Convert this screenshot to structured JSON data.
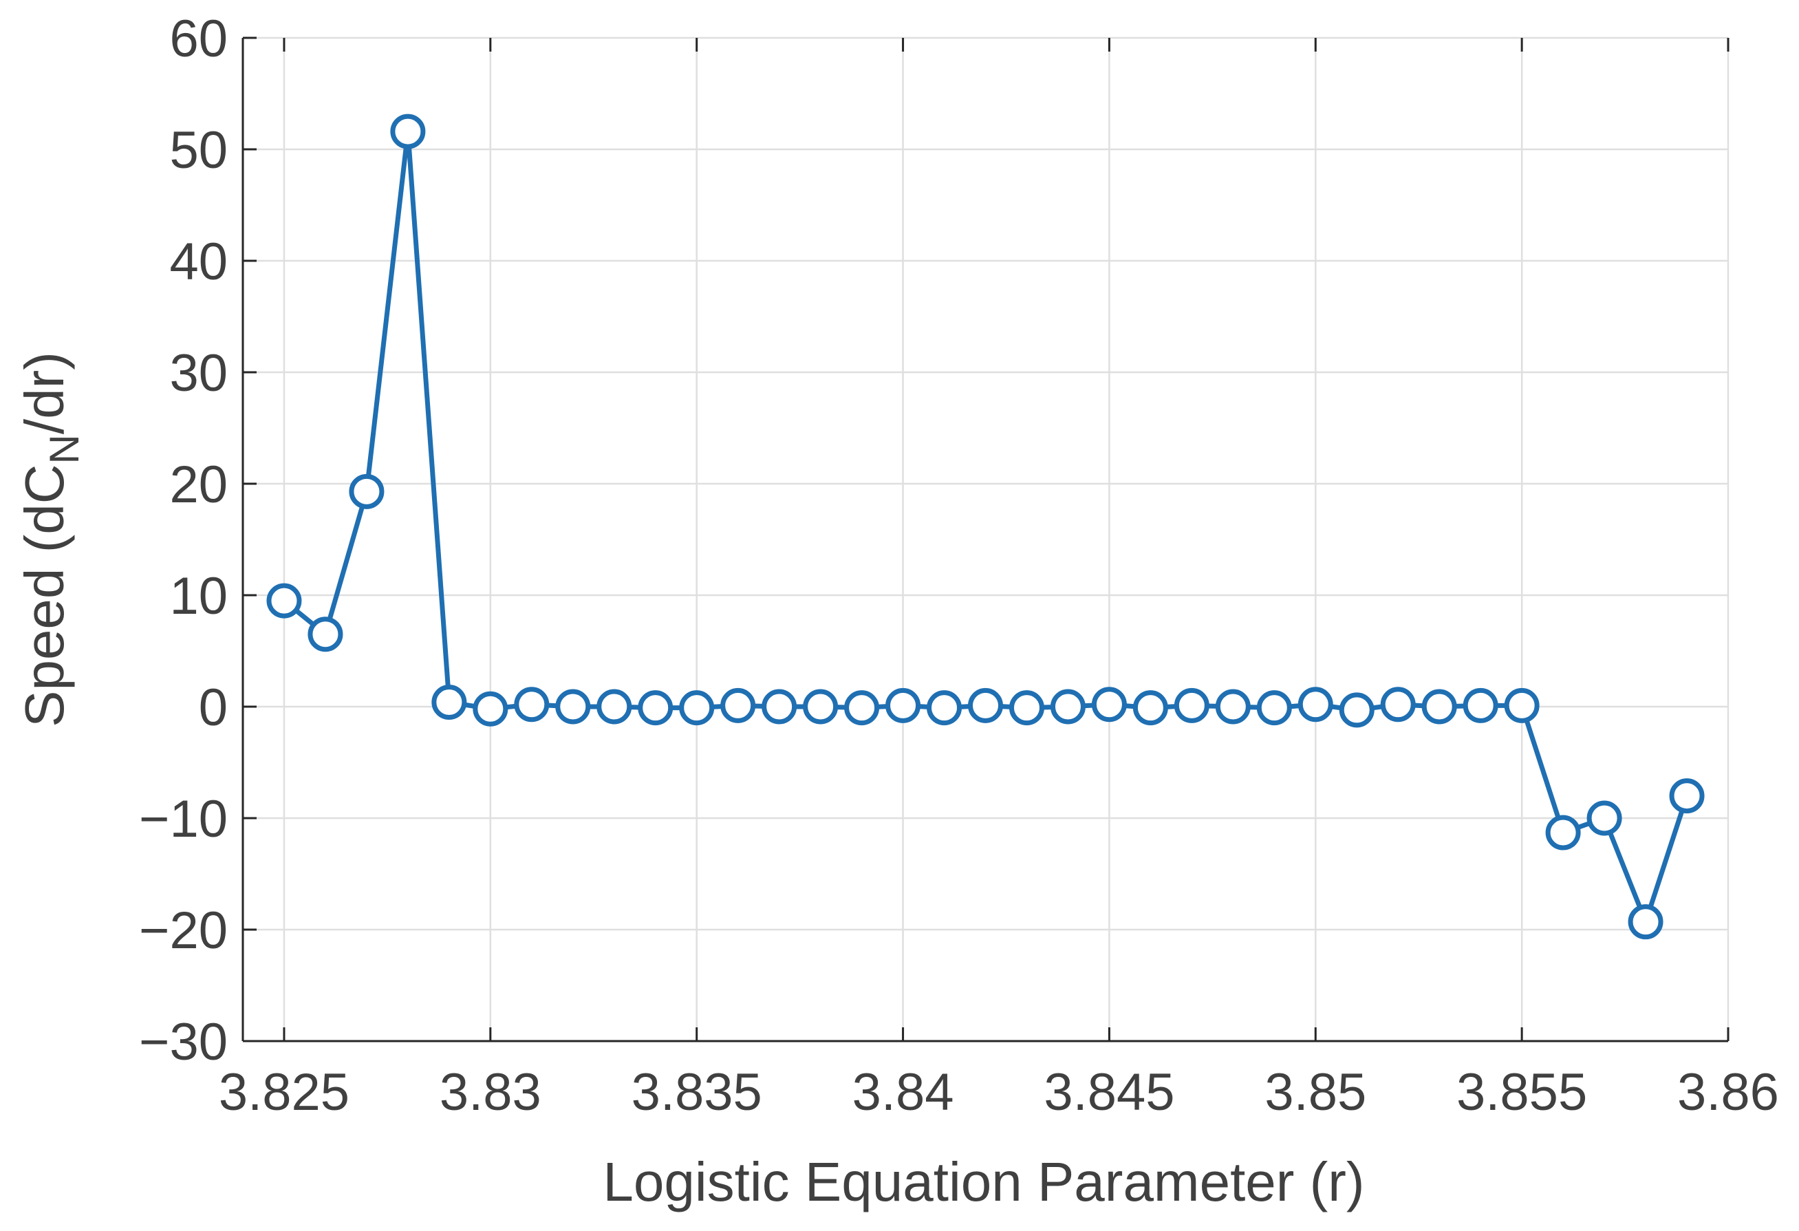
{
  "chart_data": {
    "type": "line",
    "title": "",
    "xlabel": "Logistic Equation Parameter (r)",
    "ylabel": {
      "before": "Speed (dC",
      "sub": "N",
      "after": "/dr)"
    },
    "xlim": [
      3.824,
      3.86
    ],
    "ylim": [
      -30,
      60
    ],
    "xticks": [
      3.825,
      3.83,
      3.835,
      3.84,
      3.845,
      3.85,
      3.855,
      3.86
    ],
    "xtick_labels": [
      "3.825",
      "3.83",
      "3.835",
      "3.84",
      "3.845",
      "3.85",
      "3.855",
      "3.86"
    ],
    "yticks": [
      -30,
      -20,
      -10,
      0,
      10,
      20,
      30,
      40,
      50,
      60
    ],
    "ytick_labels": [
      "−30",
      "−20",
      "−10",
      "0",
      "10",
      "20",
      "30",
      "40",
      "50",
      "60"
    ],
    "grid": true,
    "series": [
      {
        "color": "#1f6fb2",
        "marker": "open-circle",
        "x": [
          3.825,
          3.826,
          3.827,
          3.828,
          3.829,
          3.83,
          3.831,
          3.832,
          3.833,
          3.834,
          3.835,
          3.836,
          3.837,
          3.838,
          3.839,
          3.84,
          3.841,
          3.842,
          3.843,
          3.844,
          3.845,
          3.846,
          3.847,
          3.848,
          3.849,
          3.85,
          3.851,
          3.852,
          3.853,
          3.854,
          3.855,
          3.856,
          3.857,
          3.858,
          3.859
        ],
        "y": [
          9.5,
          6.5,
          19.3,
          51.6,
          0.4,
          -0.2,
          0.2,
          0.0,
          0.0,
          -0.1,
          -0.1,
          0.1,
          0.0,
          0.0,
          -0.1,
          0.1,
          -0.1,
          0.1,
          -0.1,
          0.0,
          0.2,
          -0.1,
          0.1,
          0.0,
          -0.1,
          0.2,
          -0.3,
          0.2,
          0.0,
          0.1,
          0.1,
          -11.3,
          -10.0,
          -19.3,
          -8.0
        ]
      }
    ]
  }
}
